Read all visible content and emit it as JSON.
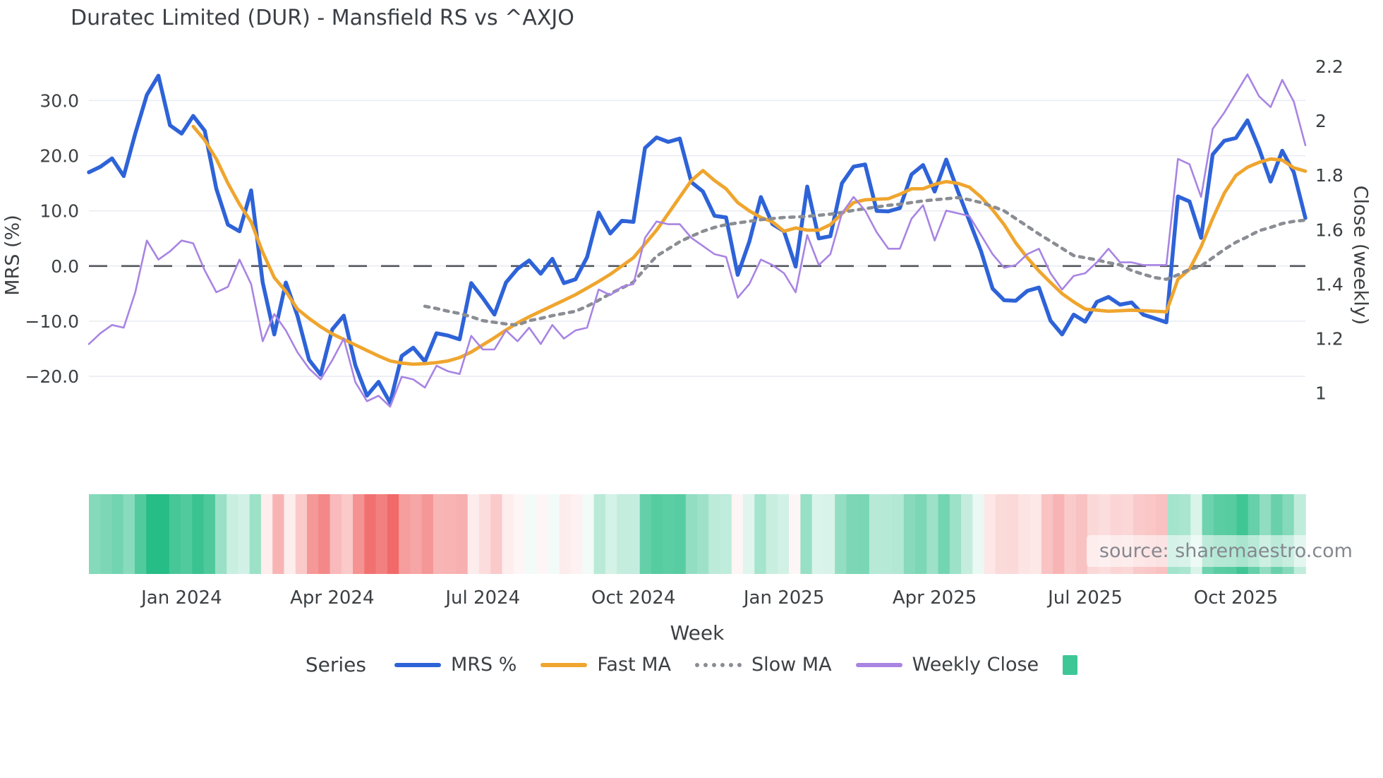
{
  "title": "Duratec Limited (DUR) - Mansfield RS vs ^AXJO",
  "watermark": "source: sharemaestro.com",
  "axes": {
    "left_title": "MRS (%)",
    "right_title": "Close (weekly)",
    "x_title": "Week",
    "left_ticks": [
      {
        "label": "30.0",
        "value": 30
      },
      {
        "label": "20.0",
        "value": 20
      },
      {
        "label": "10.0",
        "value": 10
      },
      {
        "label": "0.0",
        "value": 0
      },
      {
        "label": "−10.0",
        "value": -10
      },
      {
        "label": "−20.0",
        "value": -20
      }
    ],
    "right_ticks": [
      {
        "label": "2.2",
        "value": 2.2
      },
      {
        "label": "2",
        "value": 2.0
      },
      {
        "label": "1.8",
        "value": 1.8
      },
      {
        "label": "1.6",
        "value": 1.6
      },
      {
        "label": "1.4",
        "value": 1.4
      },
      {
        "label": "1.2",
        "value": 1.2
      },
      {
        "label": "1",
        "value": 1.0
      }
    ],
    "x_ticks": [
      {
        "label": "Jan 2024",
        "week": 8
      },
      {
        "label": "Apr 2024",
        "week": 21
      },
      {
        "label": "Jul 2024",
        "week": 34
      },
      {
        "label": "Oct 2024",
        "week": 47
      },
      {
        "label": "Jan 2025",
        "week": 60
      },
      {
        "label": "Apr 2025",
        "week": 73
      },
      {
        "label": "Jul 2025",
        "week": 86
      },
      {
        "label": "Oct 2025",
        "week": 99
      }
    ]
  },
  "legend": {
    "title": "Series",
    "items": [
      {
        "label": "MRS %",
        "swatch": "mrs",
        "style": "line"
      },
      {
        "label": "Fast MA",
        "swatch": "fast_ma",
        "style": "line"
      },
      {
        "label": "Slow MA",
        "swatch": "slow_ma",
        "style": "dotted"
      },
      {
        "label": "Weekly Close",
        "swatch": "weekly_close",
        "style": "line"
      },
      {
        "label": "",
        "swatch": "heat_green",
        "style": "square"
      }
    ]
  },
  "colors": {
    "mrs": "#2e63d8",
    "fast_ma": "#efa52e",
    "slow_ma": "#8a8d93",
    "weekly_close": "#a884e3",
    "heat_green": "#3ec796",
    "heat_green_full": "#26bd87",
    "heat_red_full": "#f06262",
    "zero_line": "#52565e",
    "gridline": "#e9ecf2",
    "tick_text": "#3c4043",
    "title_text": "#3a3f46"
  },
  "chart_data": {
    "type": "line",
    "title": "Duratec Limited (DUR) - Mansfield RS vs ^AXJO",
    "xlabel": "Week",
    "ylabel_left": "MRS (%)",
    "ylabel_right": "Close (weekly)",
    "x_unit": "weekly index, Nov 2023 - Nov 2025, 106 points",
    "left_ylim": [
      -32.4,
      36.7
    ],
    "right_ylim": [
      0.81,
      2.21
    ],
    "grid": "horizontal-only",
    "legend_position": "bottom-center",
    "zero_reference_line": 0,
    "heatmap_strip": "weekly cells colored green for positive MRS, red for negative, intensity by magnitude",
    "series": [
      {
        "name": "MRS %",
        "axis": "left",
        "color_key": "mrs",
        "style": "solid",
        "values": [
          17,
          18,
          19.5,
          16.3,
          24,
          31,
          34.5,
          25.5,
          24,
          27.2,
          24.5,
          14,
          7.5,
          6.3,
          13.7,
          -3,
          -12.4,
          -3,
          -9,
          -17,
          -19.7,
          -11.5,
          -9,
          -18,
          -23.5,
          -21,
          -24.8,
          -16.3,
          -14.8,
          -17.3,
          -12.2,
          -12.6,
          -13.3,
          -3.1,
          -5.8,
          -8.8,
          -3,
          -0.5,
          1,
          -1.4,
          1.3,
          -3.1,
          -2.4,
          1.6,
          9.7,
          5.9,
          8.2,
          8,
          21.4,
          23.3,
          22.5,
          23.1,
          15.2,
          13.5,
          9.1,
          8.8,
          -1.6,
          4.4,
          12.5,
          7.6,
          6.3,
          -0.1,
          14.4,
          5,
          5.4,
          15,
          18,
          18.4,
          10,
          9.9,
          10.5,
          16.6,
          18.3,
          13.5,
          19.3,
          13.6,
          8.2,
          2.7,
          -4.1,
          -6.2,
          -6.3,
          -4.5,
          -3.9,
          -9.9,
          -12.4,
          -8.8,
          -10.1,
          -6.5,
          -5.6,
          -7,
          -6.6,
          -8.8,
          -9.5,
          -10.2,
          12.6,
          11.7,
          5.1,
          20.2,
          22.7,
          23.2,
          26.4,
          21.3,
          15.3,
          20.9,
          17,
          8.7
        ]
      },
      {
        "name": "Fast MA",
        "axis": "left",
        "color_key": "fast_ma",
        "style": "solid",
        "values": [
          null,
          null,
          null,
          null,
          null,
          null,
          null,
          null,
          null,
          25.3,
          22.8,
          19.4,
          15,
          11.2,
          8,
          2.5,
          -2.1,
          -4.6,
          -7.8,
          -9.5,
          -11,
          -12.3,
          -13.3,
          -14.3,
          -15.3,
          -16.3,
          -17.2,
          -17.6,
          -17.8,
          -17.7,
          -17.5,
          -17.2,
          -16.6,
          -15.6,
          -14.3,
          -13,
          -11.6,
          -10.3,
          -9.2,
          -8.2,
          -7.2,
          -6.2,
          -5.2,
          -4,
          -2.8,
          -1.5,
          0,
          1.5,
          4,
          6.5,
          9.5,
          12.5,
          15.5,
          17.3,
          15.5,
          14,
          11.5,
          10,
          8.8,
          8,
          6.3,
          6.9,
          6.5,
          6.5,
          7.5,
          9.5,
          11.5,
          12,
          12.1,
          12.2,
          13,
          14,
          14,
          14.8,
          15.3,
          15,
          14.3,
          12.5,
          10.2,
          7.5,
          4.2,
          1.5,
          -0.9,
          -3,
          -5,
          -6.5,
          -7.8,
          -8,
          -8.2,
          -8.1,
          -8,
          -8.1,
          -8.2,
          -8.3,
          -2.4,
          -0.6,
          3.5,
          8.6,
          13.2,
          16.4,
          17.9,
          18.8,
          19.4,
          19.2,
          17.8,
          17.2
        ]
      },
      {
        "name": "Slow MA",
        "axis": "left",
        "color_key": "slow_ma",
        "style": "dotted",
        "values": [
          null,
          null,
          null,
          null,
          null,
          null,
          null,
          null,
          null,
          null,
          null,
          null,
          null,
          null,
          null,
          null,
          null,
          null,
          null,
          null,
          null,
          null,
          null,
          null,
          null,
          null,
          null,
          null,
          null,
          -7.3,
          -7.7,
          -8.2,
          -8.6,
          -9.2,
          -9.9,
          -10.2,
          -10.5,
          -10.7,
          -9.9,
          -9.5,
          -9,
          -8.6,
          -8.2,
          -7.3,
          -6.2,
          -5,
          -4,
          -2.9,
          -0.5,
          1.8,
          3.1,
          4.4,
          5.4,
          6.3,
          7,
          7.5,
          7.8,
          8.1,
          8.4,
          8.6,
          8.8,
          8.9,
          9,
          9.2,
          9.4,
          9.7,
          10.1,
          10.4,
          10.7,
          11,
          11.2,
          11.5,
          11.8,
          12,
          12.2,
          12.4,
          12,
          11.5,
          10.8,
          10,
          8.6,
          7.2,
          5.8,
          4.5,
          3.2,
          1.9,
          1.5,
          1.1,
          0.6,
          0.2,
          -0.8,
          -1.5,
          -2.1,
          -2.4,
          -1.6,
          -0.6,
          0,
          1.5,
          3,
          4.3,
          5.3,
          6.4,
          7,
          7.7,
          8.1,
          8.3
        ]
      },
      {
        "name": "Weekly Close",
        "axis": "right",
        "color_key": "weekly_close",
        "style": "solid",
        "values": [
          1.18,
          1.22,
          1.25,
          1.24,
          1.37,
          1.56,
          1.49,
          1.52,
          1.56,
          1.55,
          1.45,
          1.37,
          1.39,
          1.49,
          1.4,
          1.19,
          1.29,
          1.23,
          1.15,
          1.09,
          1.05,
          1.12,
          1.2,
          1.04,
          0.97,
          0.99,
          0.95,
          1.06,
          1.05,
          1.02,
          1.1,
          1.08,
          1.07,
          1.21,
          1.16,
          1.16,
          1.23,
          1.19,
          1.24,
          1.18,
          1.25,
          1.2,
          1.23,
          1.24,
          1.38,
          1.36,
          1.39,
          1.4,
          1.57,
          1.63,
          1.62,
          1.62,
          1.57,
          1.54,
          1.51,
          1.5,
          1.35,
          1.4,
          1.49,
          1.47,
          1.44,
          1.37,
          1.58,
          1.47,
          1.51,
          1.66,
          1.72,
          1.67,
          1.59,
          1.53,
          1.53,
          1.64,
          1.69,
          1.56,
          1.67,
          1.66,
          1.65,
          1.58,
          1.51,
          1.46,
          1.47,
          1.51,
          1.53,
          1.44,
          1.38,
          1.43,
          1.44,
          1.48,
          1.53,
          1.48,
          1.48,
          1.47,
          1.47,
          1.47,
          1.86,
          1.84,
          1.72,
          1.97,
          2.03,
          2.1,
          2.17,
          2.09,
          2.05,
          2.15,
          2.07,
          1.91
        ]
      }
    ]
  }
}
